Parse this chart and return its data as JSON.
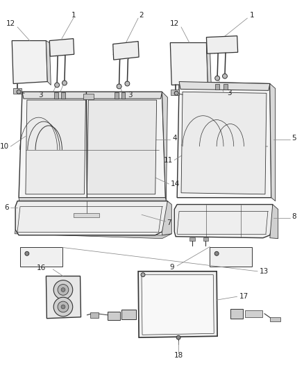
{
  "bg_color": "#ffffff",
  "line_color": "#333333",
  "label_color": "#222222",
  "callout_color": "#888888",
  "lfs": 7.5,
  "fig_w": 4.38,
  "fig_h": 5.33,
  "dpi": 100
}
